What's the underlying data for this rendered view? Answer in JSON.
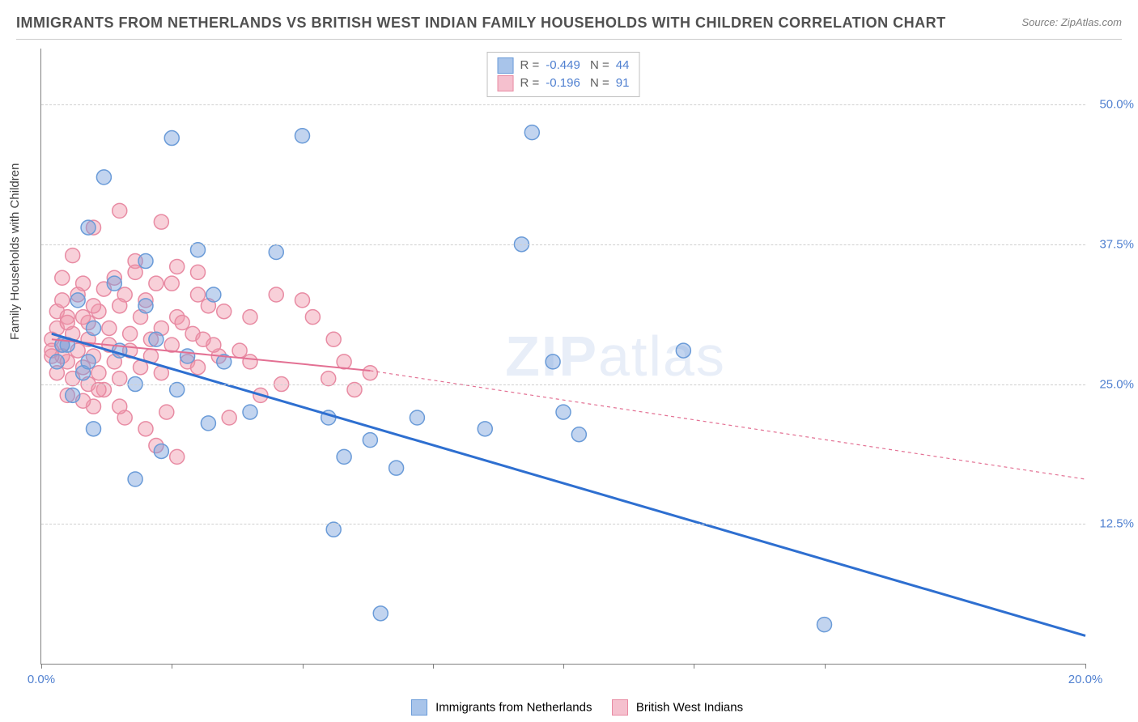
{
  "title": "IMMIGRANTS FROM NETHERLANDS VS BRITISH WEST INDIAN FAMILY HOUSEHOLDS WITH CHILDREN CORRELATION CHART",
  "source": "Source: ZipAtlas.com",
  "ylabel": "Family Households with Children",
  "watermark_a": "ZIP",
  "watermark_b": "atlas",
  "chart": {
    "type": "scatter",
    "xlim": [
      0,
      20
    ],
    "ylim": [
      0,
      55
    ],
    "xticks": [
      0,
      2.5,
      5,
      7.5,
      10,
      12.5,
      15,
      20
    ],
    "xtick_labels": {
      "0": "0.0%",
      "20": "20.0%"
    },
    "yticks": [
      12.5,
      25,
      37.5,
      50
    ],
    "ytick_labels": [
      "12.5%",
      "25.0%",
      "37.5%",
      "50.0%"
    ],
    "grid_color": "#d0d0d0",
    "background": "#ffffff",
    "axis_color": "#808080",
    "tick_label_color": "#5080d0",
    "marker_radius": 9,
    "series": [
      {
        "name": "Immigrants from Netherlands",
        "color_fill": "rgba(120,160,220,0.45)",
        "color_stroke": "#6a9bd8",
        "trend_color": "#2e6fd0",
        "trend_width": 3,
        "trend_dash": "none",
        "R": "-0.449",
        "N": "44",
        "trend_x1": 0.2,
        "trend_y1": 29.5,
        "trend_x2": 20.0,
        "trend_y2": 2.5,
        "points": [
          [
            1.2,
            43.5
          ],
          [
            2.5,
            47.0
          ],
          [
            5.0,
            47.2
          ],
          [
            9.4,
            47.5
          ],
          [
            0.9,
            39.0
          ],
          [
            3.0,
            37.0
          ],
          [
            4.5,
            36.8
          ],
          [
            9.2,
            37.5
          ],
          [
            2.0,
            32.0
          ],
          [
            3.3,
            33.0
          ],
          [
            1.0,
            30.0
          ],
          [
            2.2,
            29.0
          ],
          [
            0.5,
            28.5
          ],
          [
            1.5,
            28.0
          ],
          [
            2.8,
            27.5
          ],
          [
            3.5,
            27.0
          ],
          [
            0.8,
            26.0
          ],
          [
            1.8,
            25.0
          ],
          [
            2.6,
            24.5
          ],
          [
            4.0,
            22.5
          ],
          [
            3.2,
            21.5
          ],
          [
            5.5,
            22.0
          ],
          [
            6.3,
            20.0
          ],
          [
            7.2,
            22.0
          ],
          [
            8.5,
            21.0
          ],
          [
            10.0,
            22.5
          ],
          [
            10.3,
            20.5
          ],
          [
            9.8,
            27.0
          ],
          [
            12.3,
            28.0
          ],
          [
            5.6,
            12.0
          ],
          [
            5.8,
            18.5
          ],
          [
            6.8,
            17.5
          ],
          [
            1.0,
            21.0
          ],
          [
            1.8,
            16.5
          ],
          [
            2.3,
            19.0
          ],
          [
            0.6,
            24.0
          ],
          [
            0.3,
            27.0
          ],
          [
            0.7,
            32.5
          ],
          [
            6.5,
            4.5
          ],
          [
            15.0,
            3.5
          ],
          [
            1.4,
            34.0
          ],
          [
            2.0,
            36.0
          ],
          [
            0.4,
            28.5
          ],
          [
            0.9,
            27.0
          ]
        ]
      },
      {
        "name": "British West Indians",
        "color_fill": "rgba(240,150,170,0.45)",
        "color_stroke": "#e88ba3",
        "trend_color": "#e37093",
        "trend_width": 2,
        "trend_dash": "4,4",
        "R": "-0.196",
        "N": "91",
        "trend_x1": 0.2,
        "trend_y1": 29.0,
        "trend_x2": 6.3,
        "trend_y2": 26.2,
        "trend_ext_x2": 20.0,
        "trend_ext_y2": 16.5,
        "points": [
          [
            1.5,
            40.5
          ],
          [
            1.0,
            39.0
          ],
          [
            0.6,
            36.5
          ],
          [
            1.8,
            36.0
          ],
          [
            2.3,
            39.5
          ],
          [
            0.4,
            34.5
          ],
          [
            0.8,
            34.0
          ],
          [
            1.2,
            33.5
          ],
          [
            1.6,
            33.0
          ],
          [
            2.0,
            32.5
          ],
          [
            2.5,
            34.0
          ],
          [
            3.0,
            33.0
          ],
          [
            0.3,
            31.5
          ],
          [
            0.5,
            31.0
          ],
          [
            0.9,
            30.5
          ],
          [
            1.3,
            30.0
          ],
          [
            1.7,
            29.5
          ],
          [
            2.1,
            29.0
          ],
          [
            2.6,
            31.0
          ],
          [
            3.2,
            32.0
          ],
          [
            0.2,
            29.0
          ],
          [
            0.4,
            28.5
          ],
          [
            0.7,
            28.0
          ],
          [
            1.0,
            27.5
          ],
          [
            1.4,
            27.0
          ],
          [
            1.9,
            26.5
          ],
          [
            2.3,
            26.0
          ],
          [
            2.8,
            27.0
          ],
          [
            0.3,
            26.0
          ],
          [
            0.6,
            25.5
          ],
          [
            0.9,
            25.0
          ],
          [
            1.2,
            24.5
          ],
          [
            3.5,
            31.5
          ],
          [
            4.0,
            31.0
          ],
          [
            4.5,
            33.0
          ],
          [
            5.0,
            32.5
          ],
          [
            5.5,
            25.5
          ],
          [
            5.8,
            27.0
          ],
          [
            6.0,
            24.5
          ],
          [
            6.3,
            26.0
          ],
          [
            3.8,
            28.0
          ],
          [
            4.2,
            24.0
          ],
          [
            4.6,
            25.0
          ],
          [
            4.0,
            27.0
          ],
          [
            1.6,
            22.0
          ],
          [
            2.0,
            21.0
          ],
          [
            2.4,
            22.5
          ],
          [
            1.0,
            23.0
          ],
          [
            2.2,
            19.5
          ],
          [
            2.6,
            18.5
          ],
          [
            0.5,
            27.0
          ],
          [
            0.8,
            26.5
          ],
          [
            1.1,
            26.0
          ],
          [
            1.5,
            25.5
          ],
          [
            3.0,
            26.5
          ],
          [
            3.4,
            27.5
          ],
          [
            0.2,
            28.0
          ],
          [
            0.4,
            27.5
          ],
          [
            0.6,
            29.5
          ],
          [
            0.9,
            29.0
          ],
          [
            1.3,
            28.5
          ],
          [
            1.7,
            28.0
          ],
          [
            2.1,
            27.5
          ],
          [
            2.5,
            28.5
          ],
          [
            2.9,
            29.5
          ],
          [
            3.3,
            28.5
          ],
          [
            0.3,
            30.0
          ],
          [
            0.5,
            30.5
          ],
          [
            0.8,
            31.0
          ],
          [
            1.1,
            31.5
          ],
          [
            1.5,
            32.0
          ],
          [
            1.9,
            31.0
          ],
          [
            2.3,
            30.0
          ],
          [
            2.7,
            30.5
          ],
          [
            3.1,
            29.0
          ],
          [
            0.4,
            32.5
          ],
          [
            0.7,
            33.0
          ],
          [
            1.0,
            32.0
          ],
          [
            1.4,
            34.5
          ],
          [
            1.8,
            35.0
          ],
          [
            2.2,
            34.0
          ],
          [
            2.6,
            35.5
          ],
          [
            3.0,
            35.0
          ],
          [
            0.2,
            27.5
          ],
          [
            0.5,
            24.0
          ],
          [
            0.8,
            23.5
          ],
          [
            1.1,
            24.5
          ],
          [
            1.5,
            23.0
          ],
          [
            5.2,
            31.0
          ],
          [
            5.6,
            29.0
          ],
          [
            3.6,
            22.0
          ]
        ]
      }
    ]
  },
  "legend_bottom": {
    "series1": "Immigrants from Netherlands",
    "series2": "British West Indians"
  },
  "colors": {
    "blue_fill": "#a8c4ea",
    "blue_border": "#6a9bd8",
    "pink_fill": "#f5c0ce",
    "pink_border": "#e88ba3"
  }
}
